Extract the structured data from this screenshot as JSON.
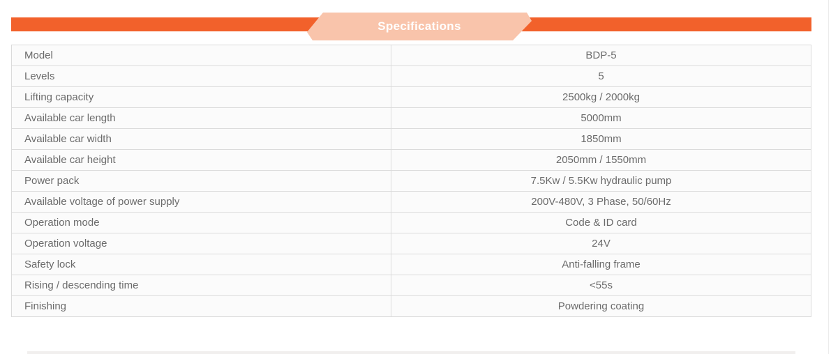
{
  "theme": {
    "accent_orange": "#F2612B",
    "banner_peach": "#F9C4AB",
    "banner_text_color": "#FFFFFF",
    "table_border": "#DBDBDB",
    "table_outer_border": "#C9C9C9",
    "cell_background": "#FBFBFB",
    "text_gray": "#6B6B6B",
    "bottom_bar_color": "#F1EFEE"
  },
  "header": {
    "title": "Specifications"
  },
  "table": {
    "rows": [
      {
        "label": "Model",
        "value": "BDP-5"
      },
      {
        "label": "Levels",
        "value": "5"
      },
      {
        "label": "Lifting capacity",
        "value": "2500kg / 2000kg"
      },
      {
        "label": "Available car length",
        "value": "5000mm"
      },
      {
        "label": "Available car width",
        "value": "1850mm"
      },
      {
        "label": "Available car height",
        "value": "2050mm / 1550mm"
      },
      {
        "label": "Power pack",
        "value": "7.5Kw / 5.5Kw hydraulic pump"
      },
      {
        "label": "Available voltage of power supply",
        "value": "200V-480V, 3 Phase, 50/60Hz"
      },
      {
        "label": "Operation mode",
        "value": "Code & ID card"
      },
      {
        "label": "Operation voltage",
        "value": "24V"
      },
      {
        "label": "Safety lock",
        "value": "Anti-falling frame"
      },
      {
        "label": "Rising / descending time",
        "value": "<55s"
      },
      {
        "label": "Finishing",
        "value": "Powdering coating"
      }
    ]
  }
}
